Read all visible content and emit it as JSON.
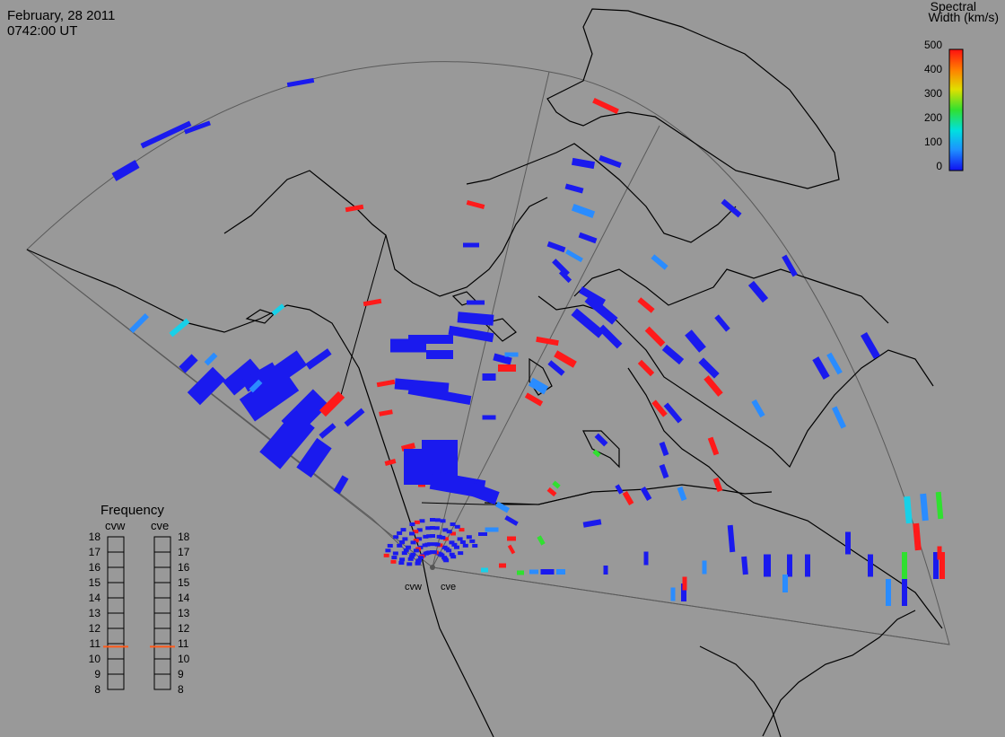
{
  "title": {
    "date": "February, 28 2011",
    "time": "0742:00 UT"
  },
  "colorbar": {
    "title_line1": "Spectral",
    "title_line2": "Width (km/s)",
    "ticks": [
      "500",
      "400",
      "300",
      "200",
      "100",
      "0"
    ],
    "range": [
      0,
      500
    ],
    "colors": [
      "#1010f0",
      "#1e90ff",
      "#00e0e0",
      "#30e030",
      "#e0e000",
      "#ff8000",
      "#ff1010"
    ]
  },
  "frequency": {
    "title": "Frequency",
    "radars": [
      {
        "name": "cvw",
        "current": 10.8
      },
      {
        "name": "cve",
        "current": 10.8
      }
    ],
    "ticks": [
      "18",
      "17",
      "16",
      "15",
      "14",
      "13",
      "12",
      "11",
      "10",
      "9",
      "8"
    ]
  },
  "sites": [
    "cvw",
    "cve"
  ],
  "colors": {
    "background": "#999999",
    "coastline": "#000000",
    "fov_outline": "#555555",
    "freq_marker": "#ff5a1a"
  }
}
